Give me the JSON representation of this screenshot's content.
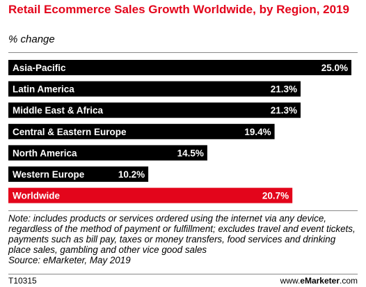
{
  "header": {
    "title": "Retail Ecommerce Sales Growth Worldwide, by Region, 2019",
    "subtitle": "% change"
  },
  "footer": {
    "note": "Note: includes products or services ordered using the internet via any device, regardless of the method of payment or fulfillment; excludes travel and event tickets, payments such as bill pay, taxes or money transfers, food services and drinking place sales, gambling and other vice good sales",
    "source": "Source: eMarketer, May 2019",
    "chart_id": "T10315",
    "brand_prefix": "www.",
    "brand_name": "eMarketer",
    "brand_suffix": ".com"
  },
  "colors": {
    "bar": "#000000",
    "highlight_bar": "#e3051b",
    "title": "#e3051b",
    "bar_text": "#ffffff"
  },
  "chart_data": {
    "type": "bar",
    "orientation": "horizontal",
    "title": "Retail Ecommerce Sales Growth Worldwide, by Region, 2019",
    "subtitle": "% change",
    "categories": [
      "Asia-Pacific",
      "Latin America",
      "Middle East & Africa",
      "Central & Eastern Europe",
      "North America",
      "Western Europe",
      "Worldwide"
    ],
    "values": [
      25.0,
      21.3,
      21.3,
      19.4,
      14.5,
      10.2,
      20.7
    ],
    "value_labels": [
      "25.0%",
      "21.3%",
      "21.3%",
      "19.4%",
      "14.5%",
      "10.2%",
      "20.7%"
    ],
    "highlight": "Worldwide",
    "xlim": [
      0,
      25
    ]
  }
}
